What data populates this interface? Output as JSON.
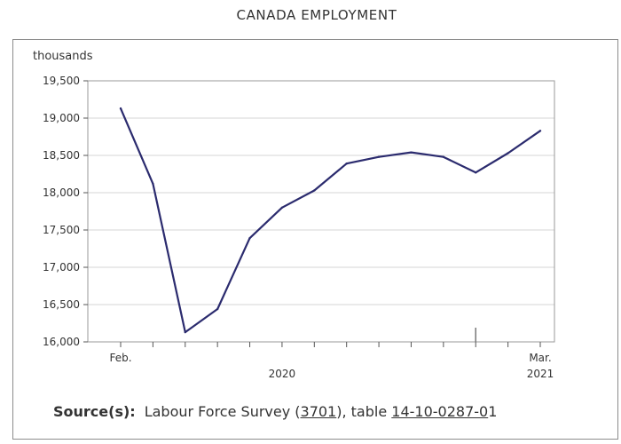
{
  "chart_data": {
    "type": "line",
    "title": "CANADA EMPLOYMENT",
    "ylabel": "thousands",
    "xlabel": "",
    "ylim": [
      16000,
      19500
    ],
    "yticks": [
      {
        "value": 16000,
        "label": "16,000"
      },
      {
        "value": 16500,
        "label": "16,500"
      },
      {
        "value": 17000,
        "label": "17,000"
      },
      {
        "value": 17500,
        "label": "17,500"
      },
      {
        "value": 18000,
        "label": "18,000"
      },
      {
        "value": 18500,
        "label": "18,500"
      },
      {
        "value": 19000,
        "label": "19,000"
      },
      {
        "value": 19500,
        "label": "19,500"
      }
    ],
    "x": [
      "2020-02",
      "2020-03",
      "2020-04",
      "2020-05",
      "2020-06",
      "2020-07",
      "2020-08",
      "2020-09",
      "2020-10",
      "2020-11",
      "2020-12",
      "2021-01",
      "2021-02",
      "2021-03"
    ],
    "x_tick_labels": [
      {
        "x": "2020-02",
        "label": "Feb."
      },
      {
        "x": "2021-03",
        "label": "Mar."
      }
    ],
    "x_year_labels": [
      {
        "x": "2020-07",
        "label": "2020"
      },
      {
        "x": "2021-03",
        "label": "2021"
      }
    ],
    "series": [
      {
        "values": [
          19130,
          18120,
          16130,
          16440,
          17390,
          17800,
          18030,
          18390,
          18480,
          18540,
          18480,
          18270,
          18530,
          18830
        ]
      }
    ],
    "grid": "horizontal",
    "legend": "none",
    "colors": {
      "line": "#2b2b6e",
      "grid": "#d6d6d6",
      "axis": "#555555"
    }
  },
  "source": {
    "label": "Source(s):",
    "text1": "Labour Force Survey (",
    "link1": "3701",
    "text2": "), table ",
    "link2": "14-10-0287-0",
    "text3": "1"
  }
}
